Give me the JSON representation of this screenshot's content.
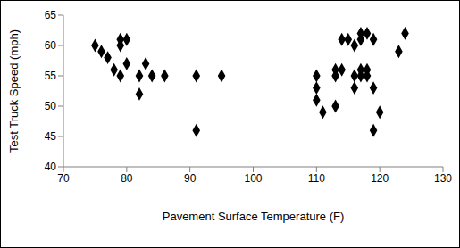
{
  "chart_data": {
    "type": "scatter",
    "x_label": "Pavement Surface Temperature (F)",
    "y_label": "Test Truck Speed (mph)",
    "x": [
      75,
      76,
      77,
      78,
      79,
      79,
      79,
      80,
      80,
      82,
      82,
      83,
      84,
      86,
      91,
      91,
      95,
      110,
      110,
      110,
      111,
      113,
      113,
      113,
      114,
      114,
      115,
      116,
      116,
      116,
      117,
      117,
      117,
      117,
      118,
      118,
      118,
      119,
      119,
      119,
      120,
      123,
      124
    ],
    "values": [
      60,
      59,
      58,
      56,
      55,
      60,
      61,
      61,
      57,
      55,
      52,
      57,
      55,
      55,
      55,
      46,
      55,
      55,
      53,
      51,
      49,
      50,
      55,
      56,
      56,
      61,
      61,
      60,
      55,
      53,
      62,
      61,
      56,
      55,
      62,
      56,
      55,
      61,
      53,
      46,
      49,
      59,
      62
    ],
    "xlim": [
      70,
      130
    ],
    "xticks": [
      70,
      80,
      90,
      100,
      110,
      120,
      130
    ],
    "ylim": [
      40,
      65
    ],
    "yticks": [
      40,
      45,
      50,
      55,
      60,
      65
    ],
    "color": "#000000",
    "marker": "diamond",
    "grid": false
  }
}
